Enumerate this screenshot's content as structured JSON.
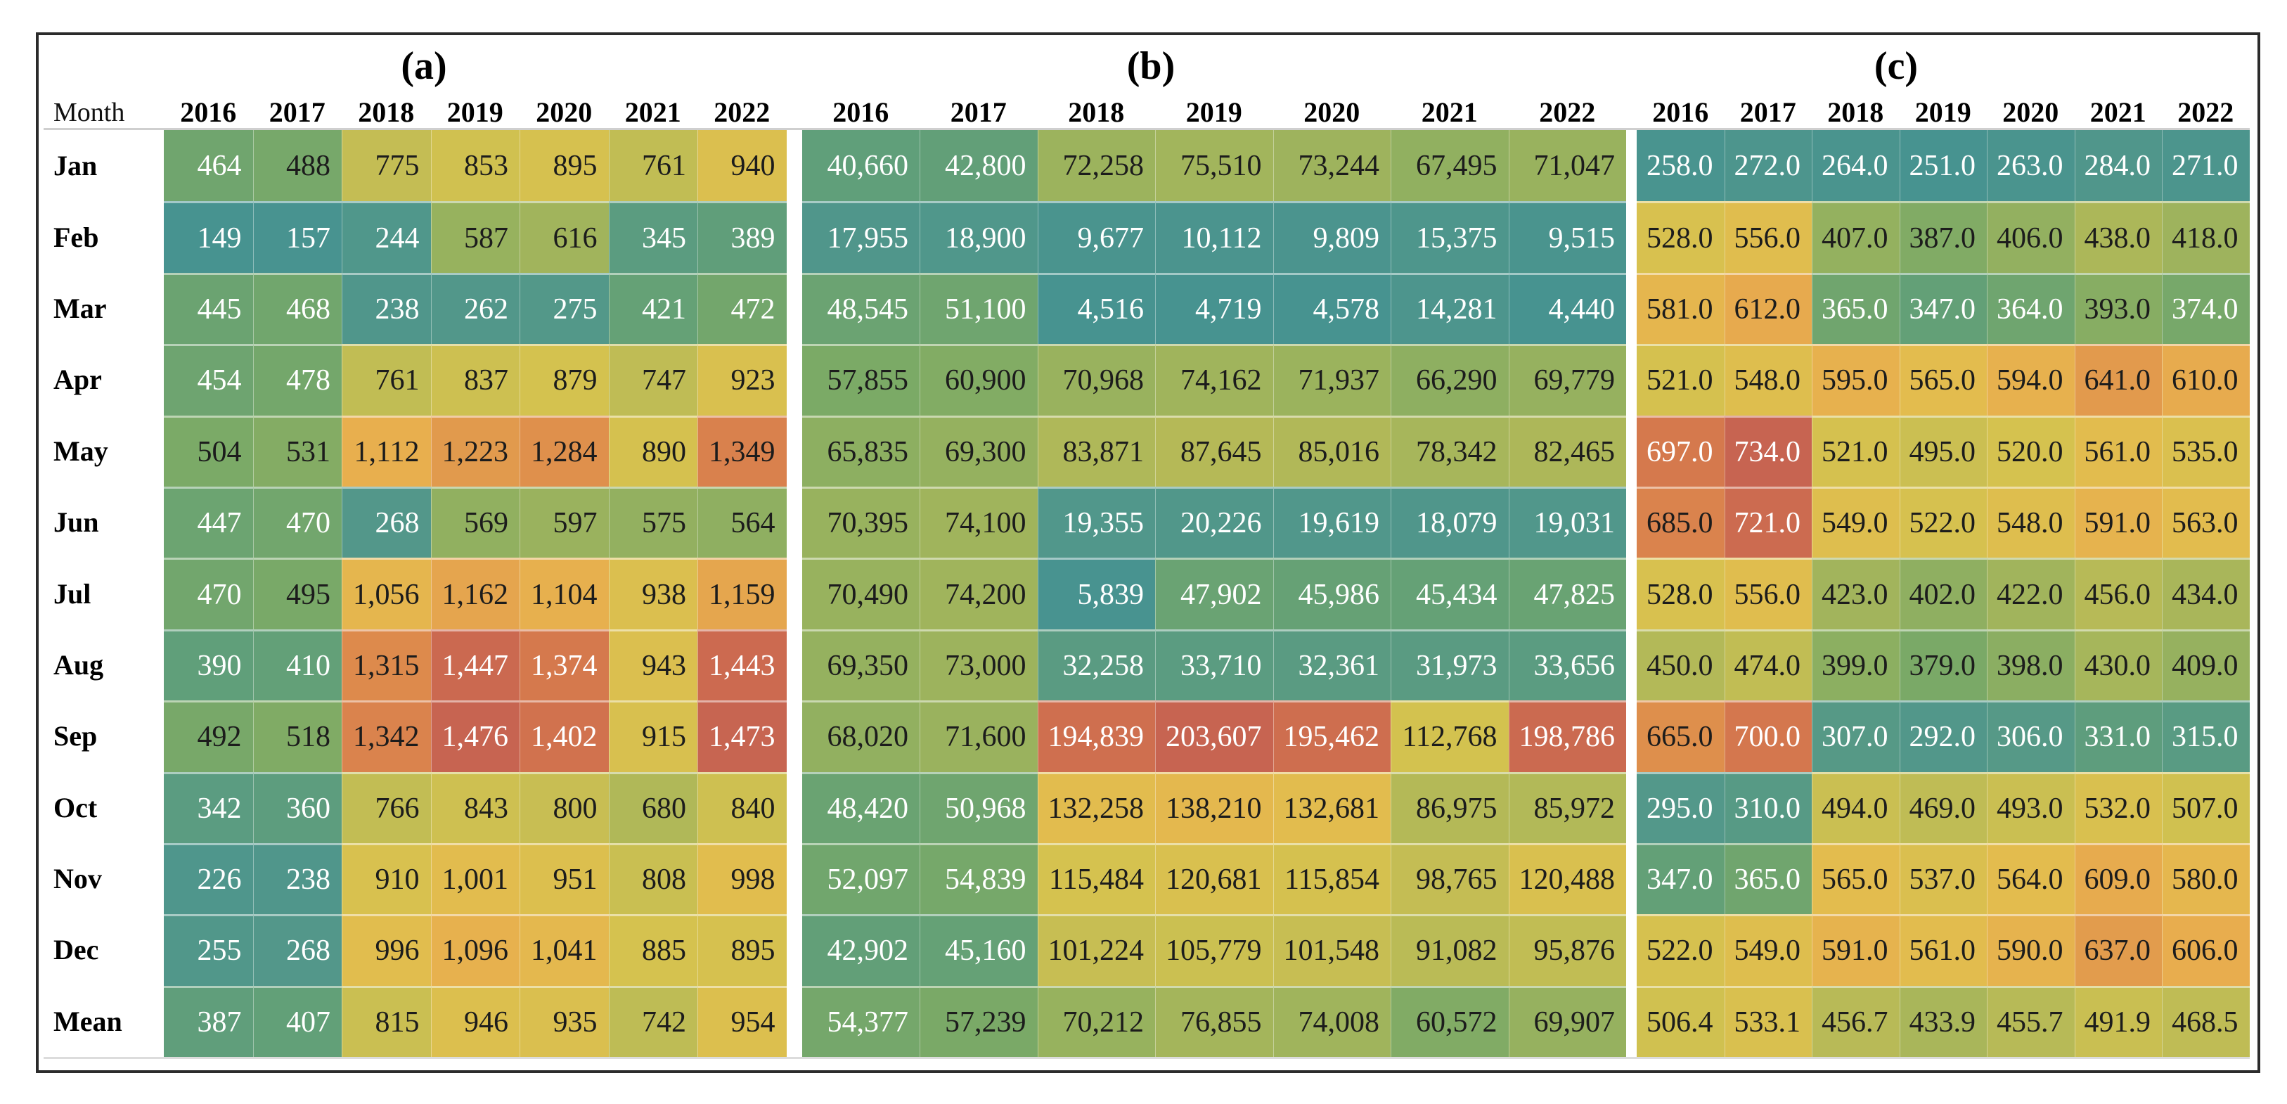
{
  "month_header": "Month",
  "years": [
    "2016",
    "2017",
    "2018",
    "2019",
    "2020",
    "2021",
    "2022"
  ],
  "months": [
    "Jan",
    "Feb",
    "Mar",
    "Apr",
    "May",
    "Jun",
    "Jul",
    "Aug",
    "Sep",
    "Oct",
    "Nov",
    "Dec",
    "Mean"
  ],
  "chart_data": [
    {
      "type": "heatmap",
      "title": "(a)",
      "value_format": "int",
      "x": [
        "2016",
        "2017",
        "2018",
        "2019",
        "2020",
        "2021",
        "2022"
      ],
      "y": [
        "Jan",
        "Feb",
        "Mar",
        "Apr",
        "May",
        "Jun",
        "Jul",
        "Aug",
        "Sep",
        "Oct",
        "Nov",
        "Dec",
        "Mean"
      ],
      "values": [
        [
          464,
          488,
          775,
          853,
          895,
          761,
          940
        ],
        [
          149,
          157,
          244,
          587,
          616,
          345,
          389
        ],
        [
          445,
          468,
          238,
          262,
          275,
          421,
          472
        ],
        [
          454,
          478,
          761,
          837,
          879,
          747,
          923
        ],
        [
          504,
          531,
          1112,
          1223,
          1284,
          890,
          1349
        ],
        [
          447,
          470,
          268,
          569,
          597,
          575,
          564
        ],
        [
          470,
          495,
          1056,
          1162,
          1104,
          938,
          1159
        ],
        [
          390,
          410,
          1315,
          1447,
          1374,
          943,
          1443
        ],
        [
          492,
          518,
          1342,
          1476,
          1402,
          915,
          1473
        ],
        [
          342,
          360,
          766,
          843,
          800,
          680,
          840
        ],
        [
          226,
          238,
          910,
          1001,
          951,
          808,
          998
        ],
        [
          255,
          268,
          996,
          1096,
          1041,
          885,
          895
        ],
        [
          387,
          407,
          815,
          946,
          935,
          742,
          954
        ]
      ]
    },
    {
      "type": "heatmap",
      "title": "(b)",
      "value_format": "int",
      "x": [
        "2016",
        "2017",
        "2018",
        "2019",
        "2020",
        "2021",
        "2022"
      ],
      "y": [
        "Jan",
        "Feb",
        "Mar",
        "Apr",
        "May",
        "Jun",
        "Jul",
        "Aug",
        "Sep",
        "Oct",
        "Nov",
        "Dec",
        "Mean"
      ],
      "values": [
        [
          40660,
          42800,
          72258,
          75510,
          73244,
          67495,
          71047
        ],
        [
          17955,
          18900,
          9677,
          10112,
          9809,
          15375,
          9515
        ],
        [
          48545,
          51100,
          4516,
          4719,
          4578,
          14281,
          4440
        ],
        [
          57855,
          60900,
          70968,
          74162,
          71937,
          66290,
          69779
        ],
        [
          65835,
          69300,
          83871,
          87645,
          85016,
          78342,
          82465
        ],
        [
          70395,
          74100,
          19355,
          20226,
          19619,
          18079,
          19031
        ],
        [
          70490,
          74200,
          5839,
          47902,
          45986,
          45434,
          47825
        ],
        [
          69350,
          73000,
          32258,
          33710,
          32361,
          31973,
          33656
        ],
        [
          68020,
          71600,
          194839,
          203607,
          195462,
          112768,
          198786
        ],
        [
          48420,
          50968,
          132258,
          138210,
          132681,
          86975,
          85972
        ],
        [
          52097,
          54839,
          115484,
          120681,
          115854,
          98765,
          120488
        ],
        [
          42902,
          45160,
          101224,
          105779,
          101548,
          91082,
          95876
        ],
        [
          54377,
          57239,
          70212,
          76855,
          74008,
          60572,
          69907
        ]
      ]
    },
    {
      "type": "heatmap",
      "title": "(c)",
      "value_format": "float1",
      "x": [
        "2016",
        "2017",
        "2018",
        "2019",
        "2020",
        "2021",
        "2022"
      ],
      "y": [
        "Jan",
        "Feb",
        "Mar",
        "Apr",
        "May",
        "Jun",
        "Jul",
        "Aug",
        "Sep",
        "Oct",
        "Nov",
        "Dec",
        "Mean"
      ],
      "values": [
        [
          258.0,
          272.0,
          264.0,
          251.0,
          263.0,
          284.0,
          271.0
        ],
        [
          528.0,
          556.0,
          407.0,
          387.0,
          406.0,
          438.0,
          418.0
        ],
        [
          581.0,
          612.0,
          365.0,
          347.0,
          364.0,
          393.0,
          374.0
        ],
        [
          521.0,
          548.0,
          595.0,
          565.0,
          594.0,
          641.0,
          610.0
        ],
        [
          697.0,
          734.0,
          521.0,
          495.0,
          520.0,
          561.0,
          535.0
        ],
        [
          685.0,
          721.0,
          549.0,
          522.0,
          548.0,
          591.0,
          563.0
        ],
        [
          528.0,
          556.0,
          423.0,
          402.0,
          422.0,
          456.0,
          434.0
        ],
        [
          450.0,
          474.0,
          399.0,
          379.0,
          398.0,
          430.0,
          409.0
        ],
        [
          665.0,
          700.0,
          307.0,
          292.0,
          306.0,
          331.0,
          315.0
        ],
        [
          295.0,
          310.0,
          494.0,
          469.0,
          493.0,
          532.0,
          507.0
        ],
        [
          347.0,
          365.0,
          565.0,
          537.0,
          564.0,
          609.0,
          580.0
        ],
        [
          522.0,
          549.0,
          591.0,
          561.0,
          590.0,
          637.0,
          606.0
        ],
        [
          506.4,
          533.1,
          456.7,
          433.9,
          455.7,
          491.9,
          468.5
        ]
      ]
    }
  ],
  "colors": {
    "background": "#ffffff",
    "frame_border": "#2b2b2b",
    "header_rule": "#cfcfcf",
    "text_dark": "#1c1c1c",
    "text_light": "#ffffff",
    "colormap_stops": [
      [
        0.0,
        "#479390"
      ],
      [
        0.1,
        "#549889"
      ],
      [
        0.2,
        "#63a077"
      ],
      [
        0.27,
        "#7caa66"
      ],
      [
        0.35,
        "#a0b45c"
      ],
      [
        0.45,
        "#bfbc55"
      ],
      [
        0.55,
        "#d4c24f"
      ],
      [
        0.65,
        "#e3bc4e"
      ],
      [
        0.73,
        "#e8ae4e"
      ],
      [
        0.8,
        "#e29c4d"
      ],
      [
        0.88,
        "#dd8a4c"
      ],
      [
        0.94,
        "#d2734e"
      ],
      [
        1.0,
        "#c76451"
      ]
    ]
  }
}
